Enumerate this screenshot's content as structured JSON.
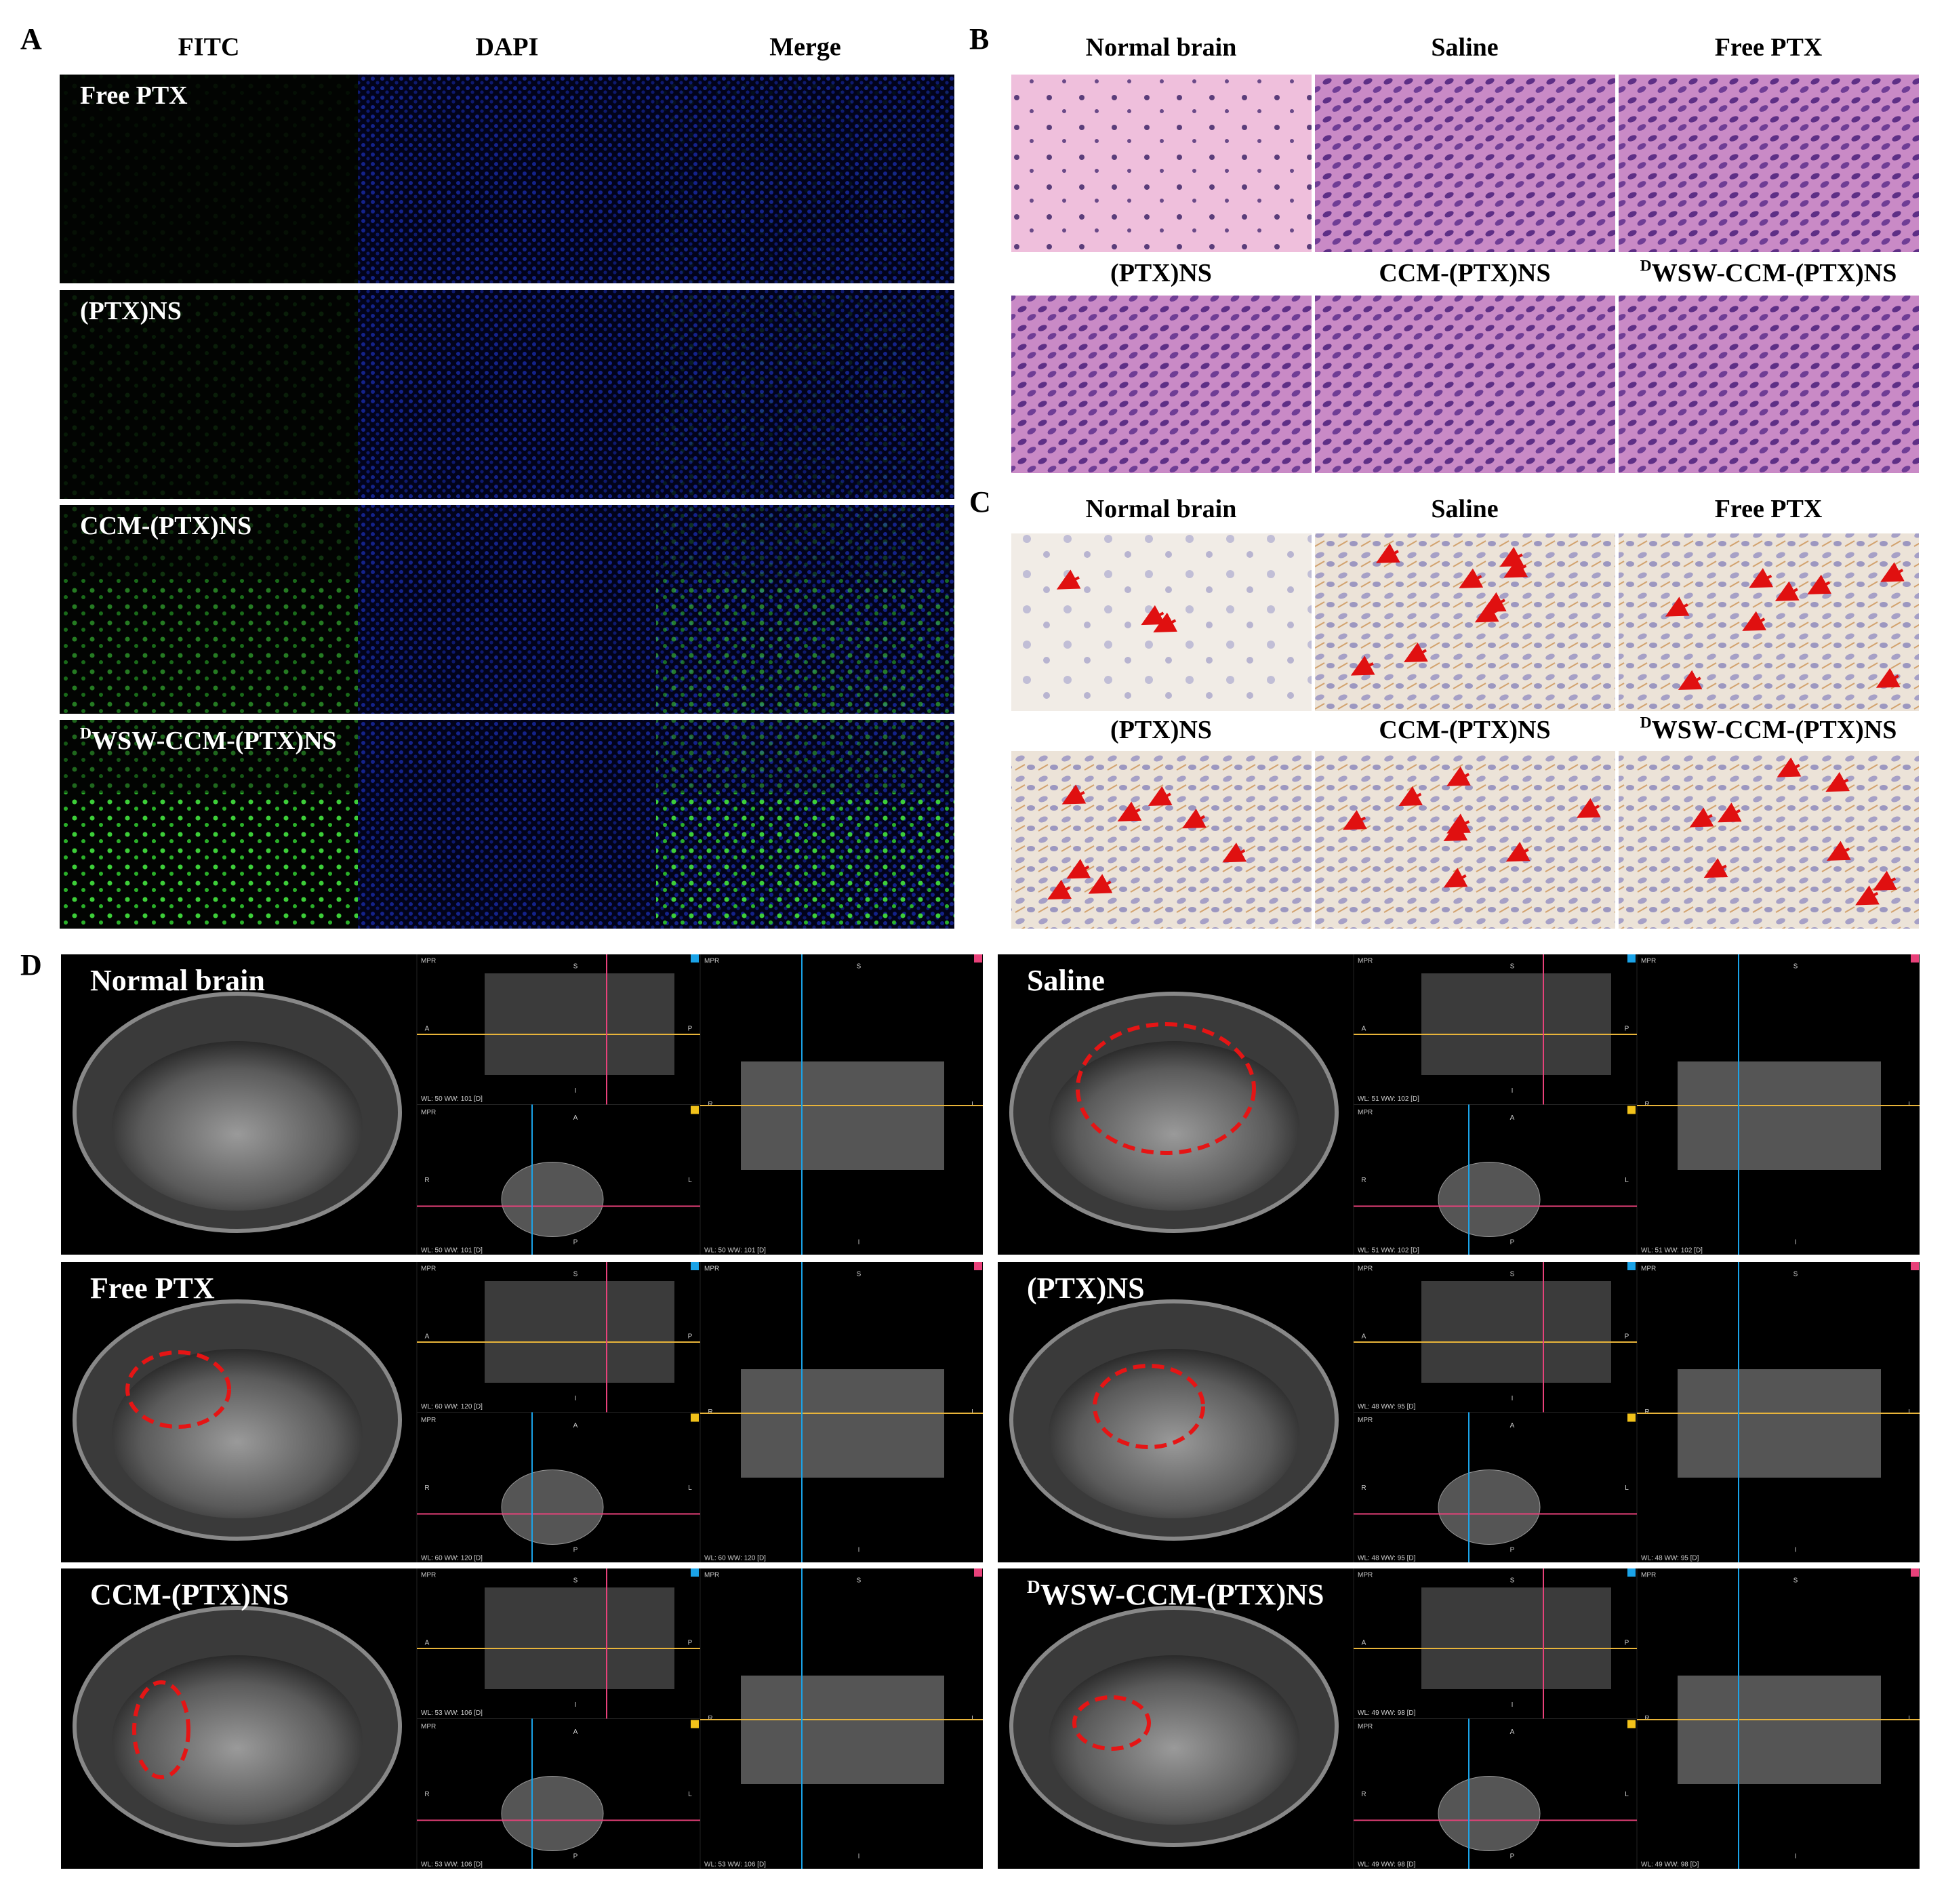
{
  "panel_a": {
    "label": "A",
    "columns": [
      "FITC",
      "DAPI",
      "Merge"
    ],
    "rows": [
      {
        "text": "Free PTX"
      },
      {
        "text": "(PTX)NS"
      },
      {
        "text": "CCM-(PTX)NS"
      },
      {
        "sup": "D",
        "text": "WSW-CCM-(PTX)NS"
      }
    ]
  },
  "panel_b": {
    "label": "B",
    "samples": [
      {
        "text": "Normal brain"
      },
      {
        "text": "Saline"
      },
      {
        "text": "Free PTX"
      },
      {
        "text": "(PTX)NS"
      },
      {
        "text": "CCM-(PTX)NS"
      },
      {
        "sup": "D",
        "text": "WSW-CCM-(PTX)NS"
      }
    ]
  },
  "panel_c": {
    "label": "C",
    "samples": [
      {
        "text": "Normal brain"
      },
      {
        "text": "Saline"
      },
      {
        "text": "Free PTX"
      },
      {
        "text": "(PTX)NS"
      },
      {
        "text": "CCM-(PTX)NS"
      },
      {
        "sup": "D",
        "text": "WSW-CCM-(PTX)NS"
      }
    ]
  },
  "panel_d": {
    "label": "D",
    "viewer_labels": {
      "mpr": "MPR",
      "s": "S",
      "i": "I",
      "a": "A",
      "p": "P",
      "r": "R",
      "l": "L"
    },
    "groups": [
      {
        "text": "Normal brain",
        "window": "WL: 50 WW: 101 [D]"
      },
      {
        "text": "Saline",
        "window": "WL: 51 WW: 102 [D]"
      },
      {
        "text": "Free PTX",
        "window": "WL: 60 WW: 120 [D]"
      },
      {
        "text": "(PTX)NS",
        "window": "WL: 48 WW: 95 [D]"
      },
      {
        "text": "CCM-(PTX)NS",
        "window": "WL: 53 WW: 106 [D]"
      },
      {
        "sup": "D",
        "text": "WSW-CCM-(PTX)NS",
        "window": "WL: 49 WW: 98 [D]"
      }
    ]
  }
}
